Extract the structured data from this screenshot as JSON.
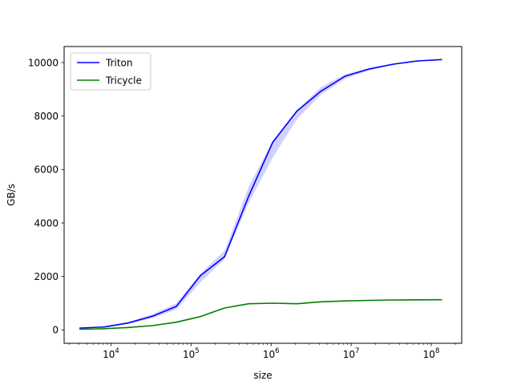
{
  "chart_data": {
    "type": "line",
    "title": "",
    "xlabel": "size",
    "ylabel": "GB/s",
    "xscale": "log",
    "xlim": [
      2600,
      240000000
    ],
    "ylim": [
      -500,
      10600
    ],
    "x": [
      4096,
      8192,
      16384,
      32768,
      65536,
      131072,
      262144,
      524288,
      1048576,
      2097152,
      4194304,
      8388608,
      16777216,
      33554432,
      67108864,
      134217728
    ],
    "x_ticks": [
      {
        "value": 10000,
        "base": "10",
        "exp": "4"
      },
      {
        "value": 100000,
        "base": "10",
        "exp": "5"
      },
      {
        "value": 1000000,
        "base": "10",
        "exp": "6"
      },
      {
        "value": 10000000,
        "base": "10",
        "exp": "7"
      },
      {
        "value": 100000000,
        "base": "10",
        "exp": "8"
      }
    ],
    "y_ticks": [
      {
        "value": 0,
        "label": "0"
      },
      {
        "value": 2000,
        "label": "2000"
      },
      {
        "value": 4000,
        "label": "4000"
      },
      {
        "value": 6000,
        "label": "6000"
      },
      {
        "value": 8000,
        "label": "8000"
      },
      {
        "value": 10000,
        "label": "10000"
      }
    ],
    "grid": false,
    "legend_position": "top-left",
    "series": [
      {
        "name": "Triton",
        "color": "#0000ff",
        "values": [
          70,
          110,
          260,
          510,
          880,
          2030,
          2740,
          5000,
          7020,
          8180,
          8930,
          9490,
          9760,
          9940,
          10060,
          10110
        ],
        "band_low": [
          55,
          90,
          230,
          440,
          760,
          1780,
          2650,
          4750,
          6450,
          7880,
          8800,
          9400,
          9700,
          9910,
          10040,
          10100
        ],
        "band_high": [
          85,
          130,
          290,
          580,
          1000,
          2110,
          2960,
          5350,
          7080,
          8230,
          9080,
          9560,
          9800,
          9960,
          10070,
          10120
        ]
      },
      {
        "name": "Tricycle",
        "color": "#008000",
        "values": [
          25,
          45,
          90,
          160,
          290,
          500,
          820,
          980,
          1000,
          980,
          1050,
          1085,
          1105,
          1120,
          1125,
          1130
        ]
      }
    ]
  }
}
